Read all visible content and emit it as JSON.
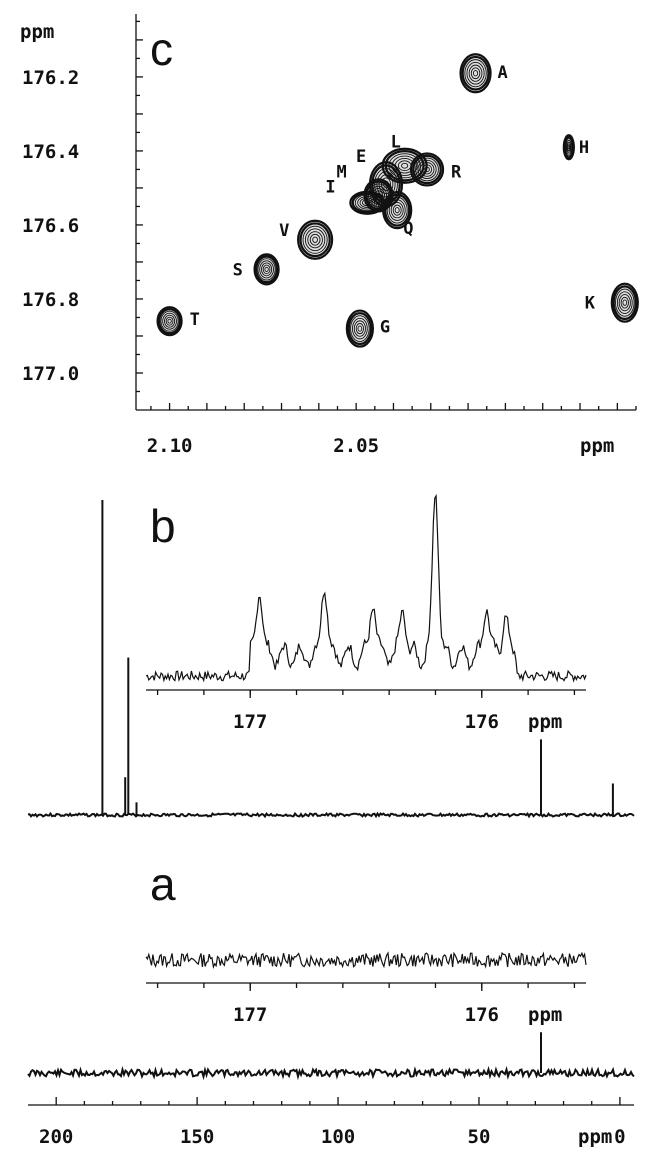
{
  "chart_data": [
    {
      "panel": "c",
      "type": "scatter",
      "subtype": "2D NMR contour plot",
      "title": "c",
      "xlabel": "ppm",
      "ylabel": "ppm",
      "xlim": [
        2.109,
        1.975
      ],
      "ylim": [
        177.1,
        176.03
      ],
      "x_reversed": true,
      "xticks": [
        "2.10",
        "2.05"
      ],
      "yticks": [
        "176.2",
        "176.4",
        "176.6",
        "176.8",
        "177.0"
      ],
      "series": [
        {
          "points": [
            {
              "label": "A",
              "x": 2.018,
              "y": 176.19
            },
            {
              "label": "H",
              "x": 1.993,
              "y": 176.39
            },
            {
              "label": "L",
              "x": 2.037,
              "y": 176.44
            },
            {
              "label": "E",
              "x": 2.042,
              "y": 176.49
            },
            {
              "label": "R",
              "x": 2.031,
              "y": 176.45
            },
            {
              "label": "M",
              "x": 2.044,
              "y": 176.52
            },
            {
              "label": "I",
              "x": 2.047,
              "y": 176.54
            },
            {
              "label": "Q",
              "x": 2.039,
              "y": 176.56
            },
            {
              "label": "V",
              "x": 2.061,
              "y": 176.64
            },
            {
              "label": "S",
              "x": 2.074,
              "y": 176.72
            },
            {
              "label": "T",
              "x": 2.1,
              "y": 176.86
            },
            {
              "label": "G",
              "x": 2.049,
              "y": 176.88
            },
            {
              "label": "K",
              "x": 1.978,
              "y": 176.81
            }
          ]
        }
      ]
    },
    {
      "panel": "b",
      "type": "line",
      "subtype": "1D 13C NMR spectrum",
      "title": "b",
      "xlabel": "ppm",
      "inset": {
        "xlabel": "ppm",
        "xlim": [
          177.45,
          175.55
        ],
        "xticks": [
          "177",
          "176"
        ],
        "peaks": [
          {
            "x": 176.96,
            "y": 0.42
          },
          {
            "x": 176.68,
            "y": 0.45
          },
          {
            "x": 176.47,
            "y": 0.33
          },
          {
            "x": 176.34,
            "y": 0.29
          },
          {
            "x": 176.2,
            "y": 1.0
          },
          {
            "x": 175.98,
            "y": 0.32
          },
          {
            "x": 175.9,
            "y": 0.25
          }
        ]
      },
      "main": {
        "xlim": [
          210,
          -5
        ],
        "peaks": [
          {
            "x": 183.6,
            "y": 1.0
          },
          {
            "x": 174.4,
            "y": 0.5
          },
          {
            "x": 175.5,
            "y": 0.12
          },
          {
            "x": 171.5,
            "y": 0.04
          },
          {
            "x": 28.0,
            "y": 0.24
          },
          {
            "x": 2.5,
            "y": 0.1
          }
        ]
      }
    },
    {
      "panel": "a",
      "type": "line",
      "subtype": "1D 13C NMR spectrum",
      "title": "a",
      "xlabel": "ppm",
      "xlim": [
        210,
        -5
      ],
      "xticks": [
        "200",
        "150",
        "100",
        "50",
        "0"
      ],
      "inset": {
        "xlabel": "ppm",
        "xlim": [
          177.45,
          175.55
        ],
        "xticks": [
          "177",
          "176"
        ],
        "peaks": []
      },
      "main": {
        "peaks": [
          {
            "x": 28.0,
            "y": 0.12
          }
        ]
      }
    }
  ]
}
